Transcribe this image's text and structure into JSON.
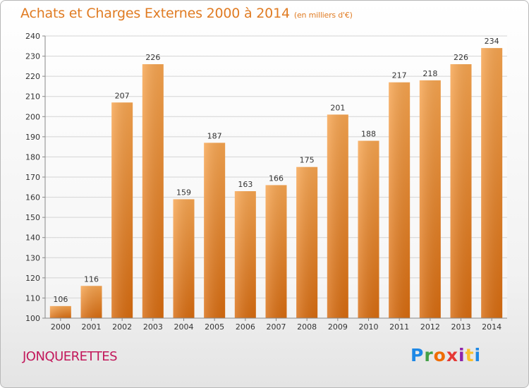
{
  "header": {
    "title": "Achats et Charges Externes 2000 à 2014",
    "subtitle": "(en milliers d'€)"
  },
  "footer": {
    "commune": "JONQUERETTES",
    "logo": [
      "P",
      "r",
      "o",
      "x",
      "i",
      "t",
      "i"
    ]
  },
  "chart_data": {
    "type": "bar",
    "title": "Achats et Charges Externes 2000 à 2014",
    "subtitle": "(en milliers d'€)",
    "categories": [
      "2000",
      "2001",
      "2002",
      "2003",
      "2004",
      "2005",
      "2006",
      "2007",
      "2008",
      "2009",
      "2010",
      "2011",
      "2012",
      "2013",
      "2014"
    ],
    "values": [
      106,
      116,
      207,
      226,
      159,
      187,
      163,
      166,
      175,
      201,
      188,
      217,
      218,
      226,
      234
    ],
    "ylim": [
      100,
      240
    ],
    "yticks": [
      100,
      110,
      120,
      130,
      140,
      150,
      160,
      170,
      180,
      190,
      200,
      210,
      220,
      230,
      240
    ],
    "grid": true,
    "bar_color": "#f08a24"
  }
}
